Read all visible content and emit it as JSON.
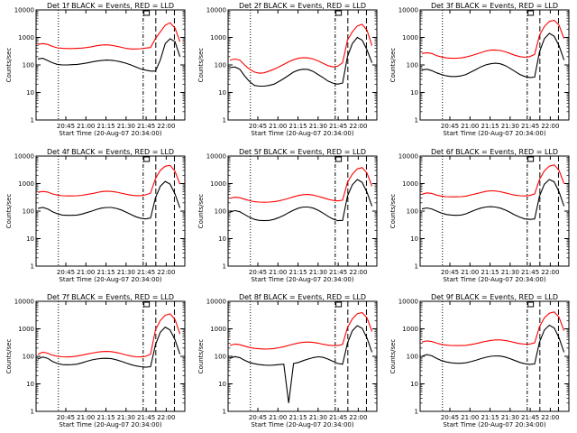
{
  "chart_data": [
    {
      "type": "line",
      "title": "Det 1f BLACK = Events, RED = LLD",
      "xlabel": "Start Time (20-Aug-07 20:34:00)",
      "ylabel": "Counts/sec",
      "yscale": "log",
      "ylim": [
        1,
        10000
      ],
      "x_tick_labels": [
        "20:45",
        "21:00",
        "21:15",
        "21:30",
        "21:45",
        "22:00"
      ],
      "series": [
        {
          "name": "BLACK",
          "color": "#000000",
          "y": [
            165,
            175,
            145,
            120,
            105,
            100,
            100,
            102,
            105,
            110,
            118,
            128,
            138,
            145,
            150,
            148,
            140,
            128,
            115,
            100,
            85,
            72,
            65,
            60,
            60,
            150,
            600,
            900,
            700,
            200
          ]
        },
        {
          "name": "RED",
          "color": "#ff0000",
          "y": [
            560,
            600,
            560,
            470,
            420,
            400,
            395,
            395,
            400,
            410,
            430,
            460,
            500,
            530,
            540,
            520,
            480,
            440,
            400,
            380,
            380,
            390,
            410,
            430,
            900,
            1600,
            2800,
            3400,
            2200,
            700
          ]
        }
      ]
    },
    {
      "type": "line",
      "title": "Det 2f BLACK = Events, RED = LLD",
      "xlabel": "Start Time (20-Aug-07 20:34:00)",
      "ylabel": "Counts/sec",
      "yscale": "log",
      "ylim": [
        1,
        10000
      ],
      "x_tick_labels": [
        "20:45",
        "21:00",
        "21:15",
        "21:30",
        "21:45",
        "22:00"
      ],
      "series": [
        {
          "name": "BLACK",
          "color": "#000000",
          "y": [
            80,
            85,
            70,
            40,
            25,
            18,
            17,
            17,
            18,
            20,
            25,
            32,
            42,
            55,
            65,
            70,
            68,
            58,
            45,
            35,
            26,
            22,
            20,
            22,
            200,
            600,
            1000,
            800,
            350,
            120
          ]
        },
        {
          "name": "RED",
          "color": "#ff0000",
          "y": [
            150,
            165,
            150,
            100,
            70,
            55,
            50,
            52,
            60,
            70,
            85,
            105,
            130,
            155,
            175,
            185,
            180,
            165,
            140,
            115,
            95,
            85,
            90,
            120,
            800,
            1600,
            2600,
            3000,
            1800,
            500
          ]
        }
      ]
    },
    {
      "type": "line",
      "title": "Det 3f BLACK = Events, RED = LLD",
      "xlabel": "Start Time (20-Aug-07 20:34:00)",
      "ylabel": "Counts/sec",
      "yscale": "log",
      "ylim": [
        1,
        10000
      ],
      "x_tick_labels": [
        "20:45",
        "21:00",
        "21:15",
        "21:30",
        "21:45",
        "22:00"
      ],
      "series": [
        {
          "name": "BLACK",
          "color": "#000000",
          "y": [
            65,
            70,
            62,
            52,
            45,
            40,
            38,
            38,
            40,
            45,
            55,
            68,
            85,
            100,
            110,
            115,
            110,
            95,
            75,
            58,
            45,
            38,
            35,
            36,
            300,
            900,
            1400,
            1100,
            500,
            150
          ]
        },
        {
          "name": "RED",
          "color": "#ff0000",
          "y": [
            260,
            280,
            260,
            220,
            195,
            180,
            175,
            175,
            180,
            195,
            215,
            245,
            280,
            320,
            345,
            350,
            335,
            300,
            260,
            225,
            200,
            190,
            200,
            240,
            1200,
            2500,
            3800,
            4200,
            2800,
            900
          ]
        }
      ]
    },
    {
      "type": "line",
      "title": "Det 4f BLACK = Events, RED = LLD",
      "xlabel": "Start Time (20-Aug-07 20:34:00)",
      "ylabel": "Counts/sec",
      "yscale": "log",
      "ylim": [
        1,
        10000
      ],
      "x_tick_labels": [
        "20:45",
        "21:00",
        "21:15",
        "21:30",
        "21:45",
        "22:00"
      ],
      "series": [
        {
          "name": "BLACK",
          "color": "#000000",
          "y": [
            125,
            135,
            120,
            95,
            80,
            72,
            70,
            70,
            72,
            78,
            88,
            100,
            115,
            128,
            135,
            135,
            125,
            110,
            92,
            75,
            62,
            55,
            52,
            56,
            300,
            800,
            1200,
            950,
            420,
            130
          ]
        },
        {
          "name": "RED",
          "color": "#ff0000",
          "y": [
            480,
            520,
            490,
            420,
            380,
            360,
            355,
            355,
            360,
            375,
            400,
            430,
            470,
            510,
            530,
            520,
            490,
            450,
            410,
            380,
            365,
            365,
            390,
            450,
            1500,
            3000,
            4300,
            4600,
            2800,
            950
          ]
        }
      ]
    },
    {
      "type": "line",
      "title": "Det 5f BLACK = Events, RED = LLD",
      "xlabel": "Start Time (20-Aug-07 20:34:00)",
      "ylabel": "Counts/sec",
      "yscale": "log",
      "ylim": [
        1,
        10000
      ],
      "x_tick_labels": [
        "20:45",
        "21:00",
        "21:15",
        "21:30",
        "21:45",
        "22:00"
      ],
      "series": [
        {
          "name": "BLACK",
          "color": "#000000",
          "y": [
            90,
            105,
            95,
            75,
            60,
            50,
            46,
            45,
            46,
            50,
            58,
            70,
            88,
            108,
            128,
            140,
            140,
            128,
            108,
            85,
            65,
            52,
            45,
            46,
            350,
            900,
            1400,
            1100,
            480,
            150
          ]
        },
        {
          "name": "RED",
          "color": "#ff0000",
          "y": [
            290,
            320,
            305,
            270,
            240,
            220,
            212,
            210,
            212,
            220,
            235,
            258,
            290,
            330,
            370,
            395,
            400,
            380,
            345,
            305,
            270,
            245,
            235,
            250,
            1100,
            2200,
            3400,
            3800,
            2400,
            800
          ]
        }
      ]
    },
    {
      "type": "line",
      "title": "Det 6f BLACK = Events, RED = LLD",
      "xlabel": "Start Time (20-Aug-07 20:34:00)",
      "ylabel": "Counts/sec",
      "yscale": "log",
      "ylim": [
        1,
        10000
      ],
      "x_tick_labels": [
        "20:45",
        "21:00",
        "21:15",
        "21:30",
        "21:45",
        "22:00"
      ],
      "series": [
        {
          "name": "BLACK",
          "color": "#000000",
          "y": [
            120,
            130,
            120,
            100,
            85,
            75,
            72,
            70,
            72,
            80,
            95,
            112,
            128,
            140,
            145,
            140,
            128,
            110,
            90,
            72,
            60,
            52,
            50,
            52,
            350,
            950,
            1400,
            1150,
            500,
            150
          ]
        },
        {
          "name": "RED",
          "color": "#ff0000",
          "y": [
            410,
            460,
            440,
            380,
            350,
            335,
            330,
            330,
            335,
            350,
            385,
            425,
            470,
            520,
            545,
            540,
            505,
            460,
            415,
            380,
            360,
            355,
            370,
            420,
            1400,
            2900,
            4300,
            4800,
            3000,
            1000
          ]
        }
      ]
    },
    {
      "type": "line",
      "title": "Det 7f BLACK = Events, RED = LLD",
      "xlabel": "Start Time (20-Aug-07 20:34:00)",
      "ylabel": "Counts/sec",
      "yscale": "log",
      "ylim": [
        1,
        10000
      ],
      "x_tick_labels": [
        "20:45",
        "21:00",
        "21:15",
        "21:30",
        "21:45",
        "22:00"
      ],
      "series": [
        {
          "name": "BLACK",
          "color": "#000000",
          "y": [
            80,
            95,
            85,
            65,
            55,
            50,
            49,
            50,
            52,
            58,
            66,
            74,
            80,
            84,
            85,
            82,
            75,
            66,
            57,
            50,
            45,
            42,
            40,
            42,
            260,
            750,
            1150,
            900,
            400,
            120
          ]
        },
        {
          "name": "RED",
          "color": "#ff0000",
          "y": [
            120,
            140,
            130,
            110,
            100,
            96,
            95,
            97,
            102,
            110,
            120,
            130,
            140,
            148,
            150,
            148,
            138,
            125,
            112,
            102,
            96,
            95,
            100,
            120,
            900,
            2000,
            3100,
            3500,
            2200,
            650
          ]
        }
      ]
    },
    {
      "type": "line",
      "title": "Det 8f BLACK = Events, RED = LLD",
      "xlabel": "Start Time (20-Aug-07 20:34:00)",
      "ylabel": "Counts/sec",
      "yscale": "log",
      "ylim": [
        1,
        10000
      ],
      "x_tick_labels": [
        "20:45",
        "21:00",
        "21:15",
        "21:30",
        "21:45",
        "22:00"
      ],
      "series": [
        {
          "name": "BLACK",
          "color": "#000000",
          "y": [
            85,
            98,
            90,
            72,
            60,
            54,
            50,
            48,
            47,
            48,
            50,
            52,
            2,
            55,
            60,
            70,
            80,
            90,
            96,
            92,
            80,
            66,
            55,
            52,
            300,
            850,
            1300,
            1050,
            460,
            140
          ]
        },
        {
          "name": "RED",
          "color": "#ff0000",
          "y": [
            250,
            280,
            265,
            235,
            210,
            195,
            188,
            185,
            186,
            192,
            205,
            225,
            250,
            278,
            305,
            325,
            330,
            320,
            300,
            275,
            255,
            245,
            245,
            270,
            1100,
            2300,
            3500,
            3900,
            2500,
            800
          ]
        }
      ]
    },
    {
      "type": "line",
      "title": "Det 9f BLACK = Events, RED = LLD",
      "xlabel": "Start Time (20-Aug-07 20:34:00)",
      "ylabel": "Counts/sec",
      "yscale": "log",
      "ylim": [
        1,
        10000
      ],
      "x_tick_labels": [
        "20:45",
        "21:00",
        "21:15",
        "21:30",
        "21:45",
        "22:00"
      ],
      "series": [
        {
          "name": "BLACK",
          "color": "#000000",
          "y": [
            100,
            115,
            105,
            85,
            70,
            62,
            58,
            56,
            56,
            58,
            64,
            72,
            82,
            92,
            100,
            104,
            102,
            94,
            82,
            70,
            60,
            54,
            51,
            53,
            330,
            900,
            1350,
            1080,
            470,
            140
          ]
        },
        {
          "name": "RED",
          "color": "#ff0000",
          "y": [
            330,
            365,
            345,
            300,
            270,
            255,
            248,
            245,
            246,
            252,
            268,
            290,
            318,
            350,
            378,
            395,
            395,
            378,
            348,
            315,
            290,
            278,
            280,
            310,
            1200,
            2500,
            3700,
            4100,
            2600,
            850
          ]
        }
      ]
    }
  ]
}
